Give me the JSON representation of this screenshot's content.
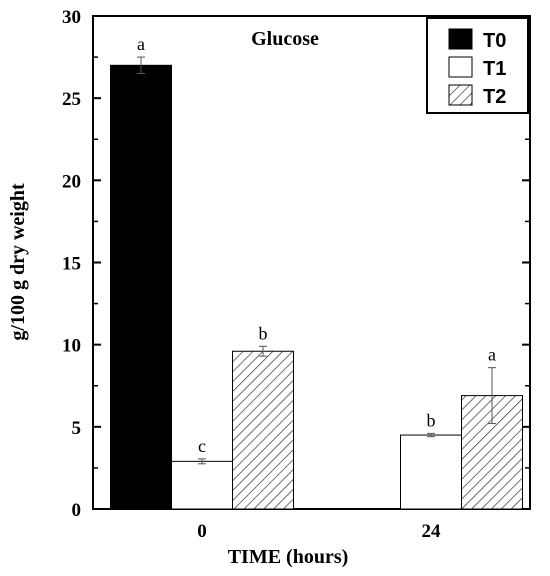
{
  "chart_data": {
    "type": "bar",
    "title": "Glucose",
    "xlabel": "TIME (hours)",
    "ylabel": "g/100 g dry weight",
    "categories": [
      "0",
      "24"
    ],
    "ylim": [
      0,
      30
    ],
    "yticks": [
      0,
      5,
      10,
      15,
      20,
      25,
      30
    ],
    "grid": false,
    "legend_position": "top-right",
    "series": [
      {
        "name": "T0",
        "fill": "solid",
        "color": "#000000",
        "values": [
          27.0,
          0.0
        ],
        "errors": [
          0.5,
          0.0
        ],
        "labels": [
          "a",
          ""
        ]
      },
      {
        "name": "T1",
        "fill": "white",
        "color": "#ffffff",
        "values": [
          2.9,
          4.5
        ],
        "errors": [
          0.15,
          0.1
        ],
        "labels": [
          "c",
          "b"
        ]
      },
      {
        "name": "T2",
        "fill": "hatched",
        "color": "#ffffff",
        "values": [
          9.6,
          6.9
        ],
        "errors": [
          0.3,
          1.7
        ],
        "labels": [
          "b",
          "a"
        ]
      }
    ]
  }
}
